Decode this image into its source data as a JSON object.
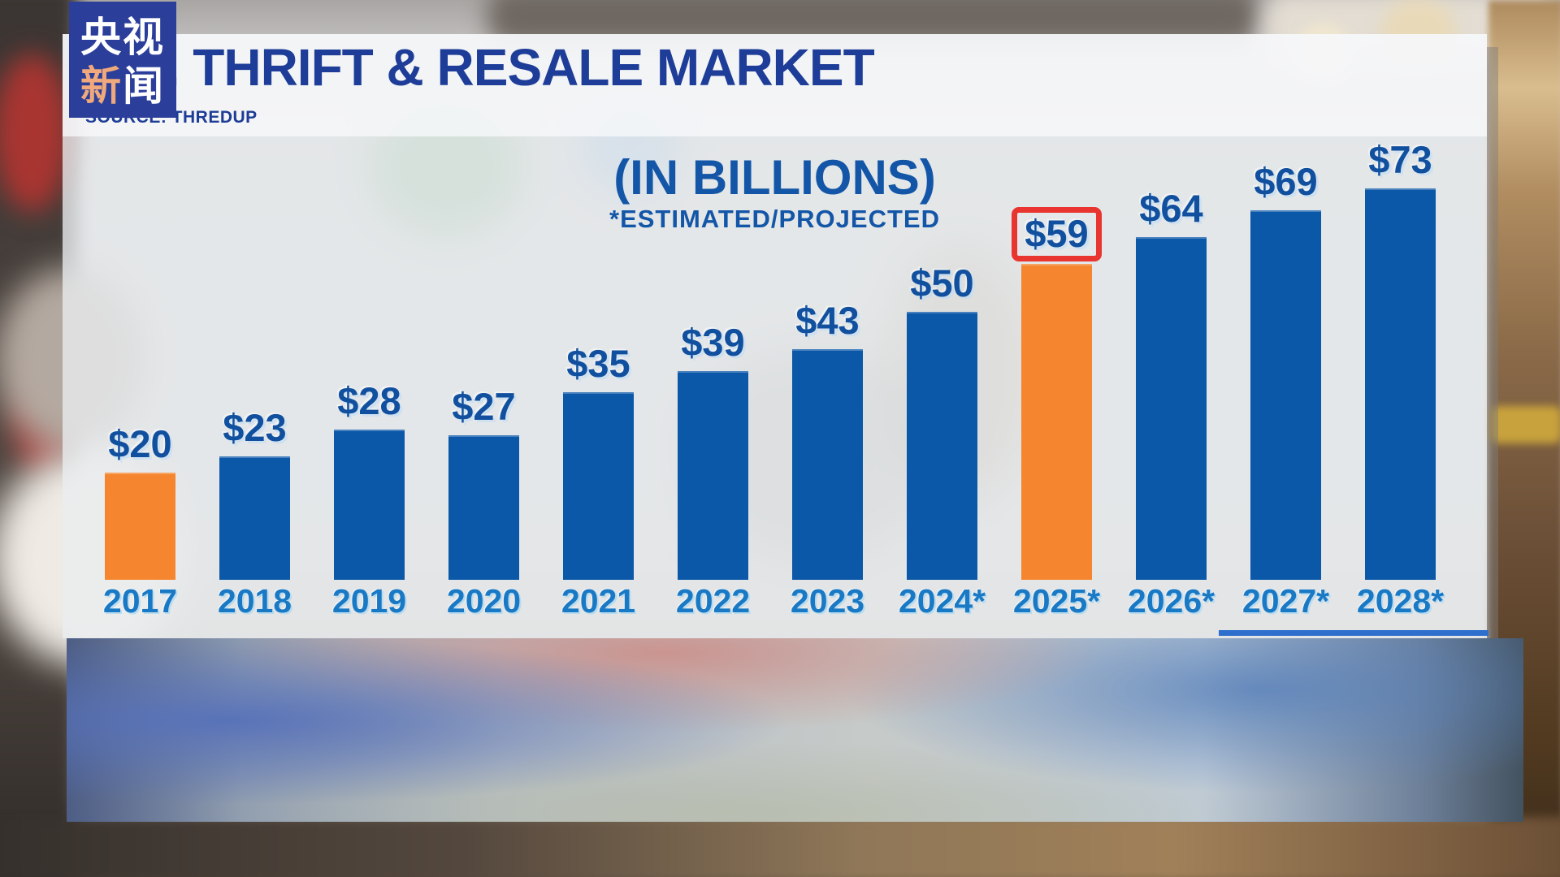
{
  "logo": {
    "line1": "央视",
    "line2_char1": "新",
    "line2_char2": "闻",
    "bg_color": "#2b3f9a",
    "accent_color": "#efa97c"
  },
  "header": {
    "title": "U.S. THRIFT & RESALE MARKET",
    "source": "SOURCE: THREDUP"
  },
  "chart_data": {
    "type": "bar",
    "title": "(IN BILLIONS)",
    "subtitle": "*ESTIMATED/PROJECTED",
    "value_prefix": "$",
    "categories": [
      "2017",
      "2018",
      "2019",
      "2020",
      "2021",
      "2022",
      "2023",
      "2024*",
      "2025*",
      "2026*",
      "2027*",
      "2028*"
    ],
    "values": [
      20,
      23,
      28,
      27,
      35,
      39,
      43,
      50,
      59,
      64,
      69,
      73
    ],
    "orange_indices": [
      0,
      8
    ],
    "highlight_index": 8,
    "ylim": [
      0,
      80
    ],
    "grid": false,
    "legend": null,
    "colors": {
      "bar_blue": "#0b57a8",
      "bar_orange": "#f5862f",
      "value_label": "#11509f",
      "year_label": "#1a79c5",
      "highlight_box": "#e8352f",
      "chart_title_blue": "#1356a8",
      "header_title_blue": "#1d3d98"
    }
  }
}
